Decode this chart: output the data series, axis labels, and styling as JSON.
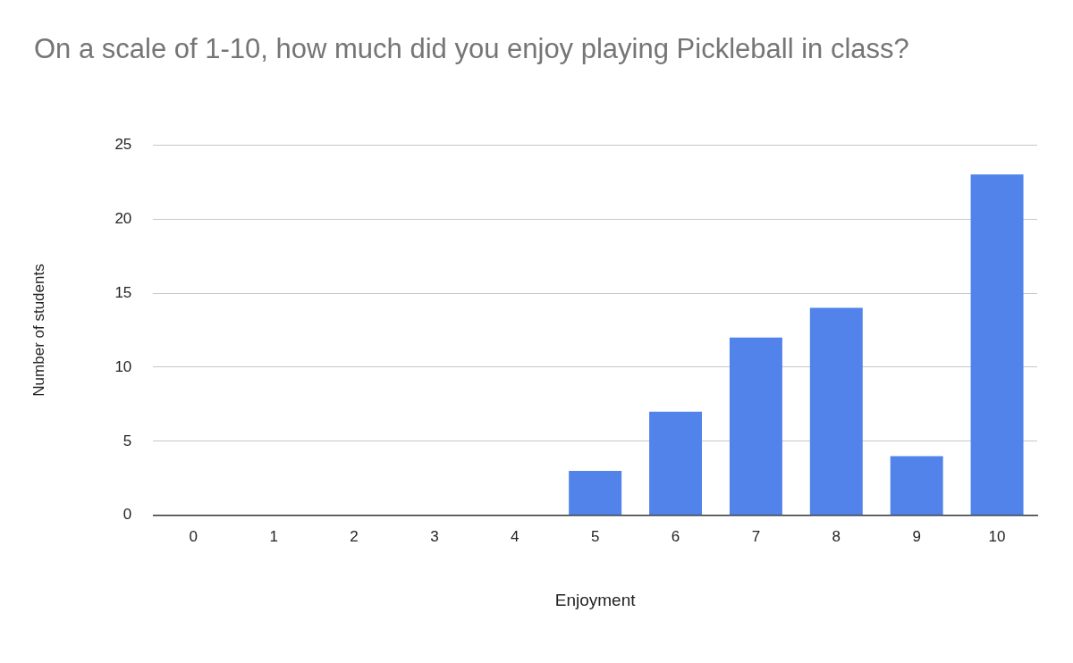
{
  "chart_data": {
    "type": "bar",
    "title": "On a scale of 1-10, how much did you enjoy playing Pickleball in class?",
    "xlabel": "Enjoyment",
    "ylabel": "Number of students",
    "categories": [
      "0",
      "1",
      "2",
      "3",
      "4",
      "5",
      "6",
      "7",
      "8",
      "9",
      "10"
    ],
    "values": [
      0,
      0,
      0,
      0,
      0,
      3,
      7,
      12,
      14,
      4,
      23
    ],
    "color": "#5183ea",
    "ylim": [
      0,
      25
    ],
    "yticks": [
      0,
      5,
      10,
      15,
      20,
      25
    ],
    "grid": "y",
    "legend": false
  }
}
